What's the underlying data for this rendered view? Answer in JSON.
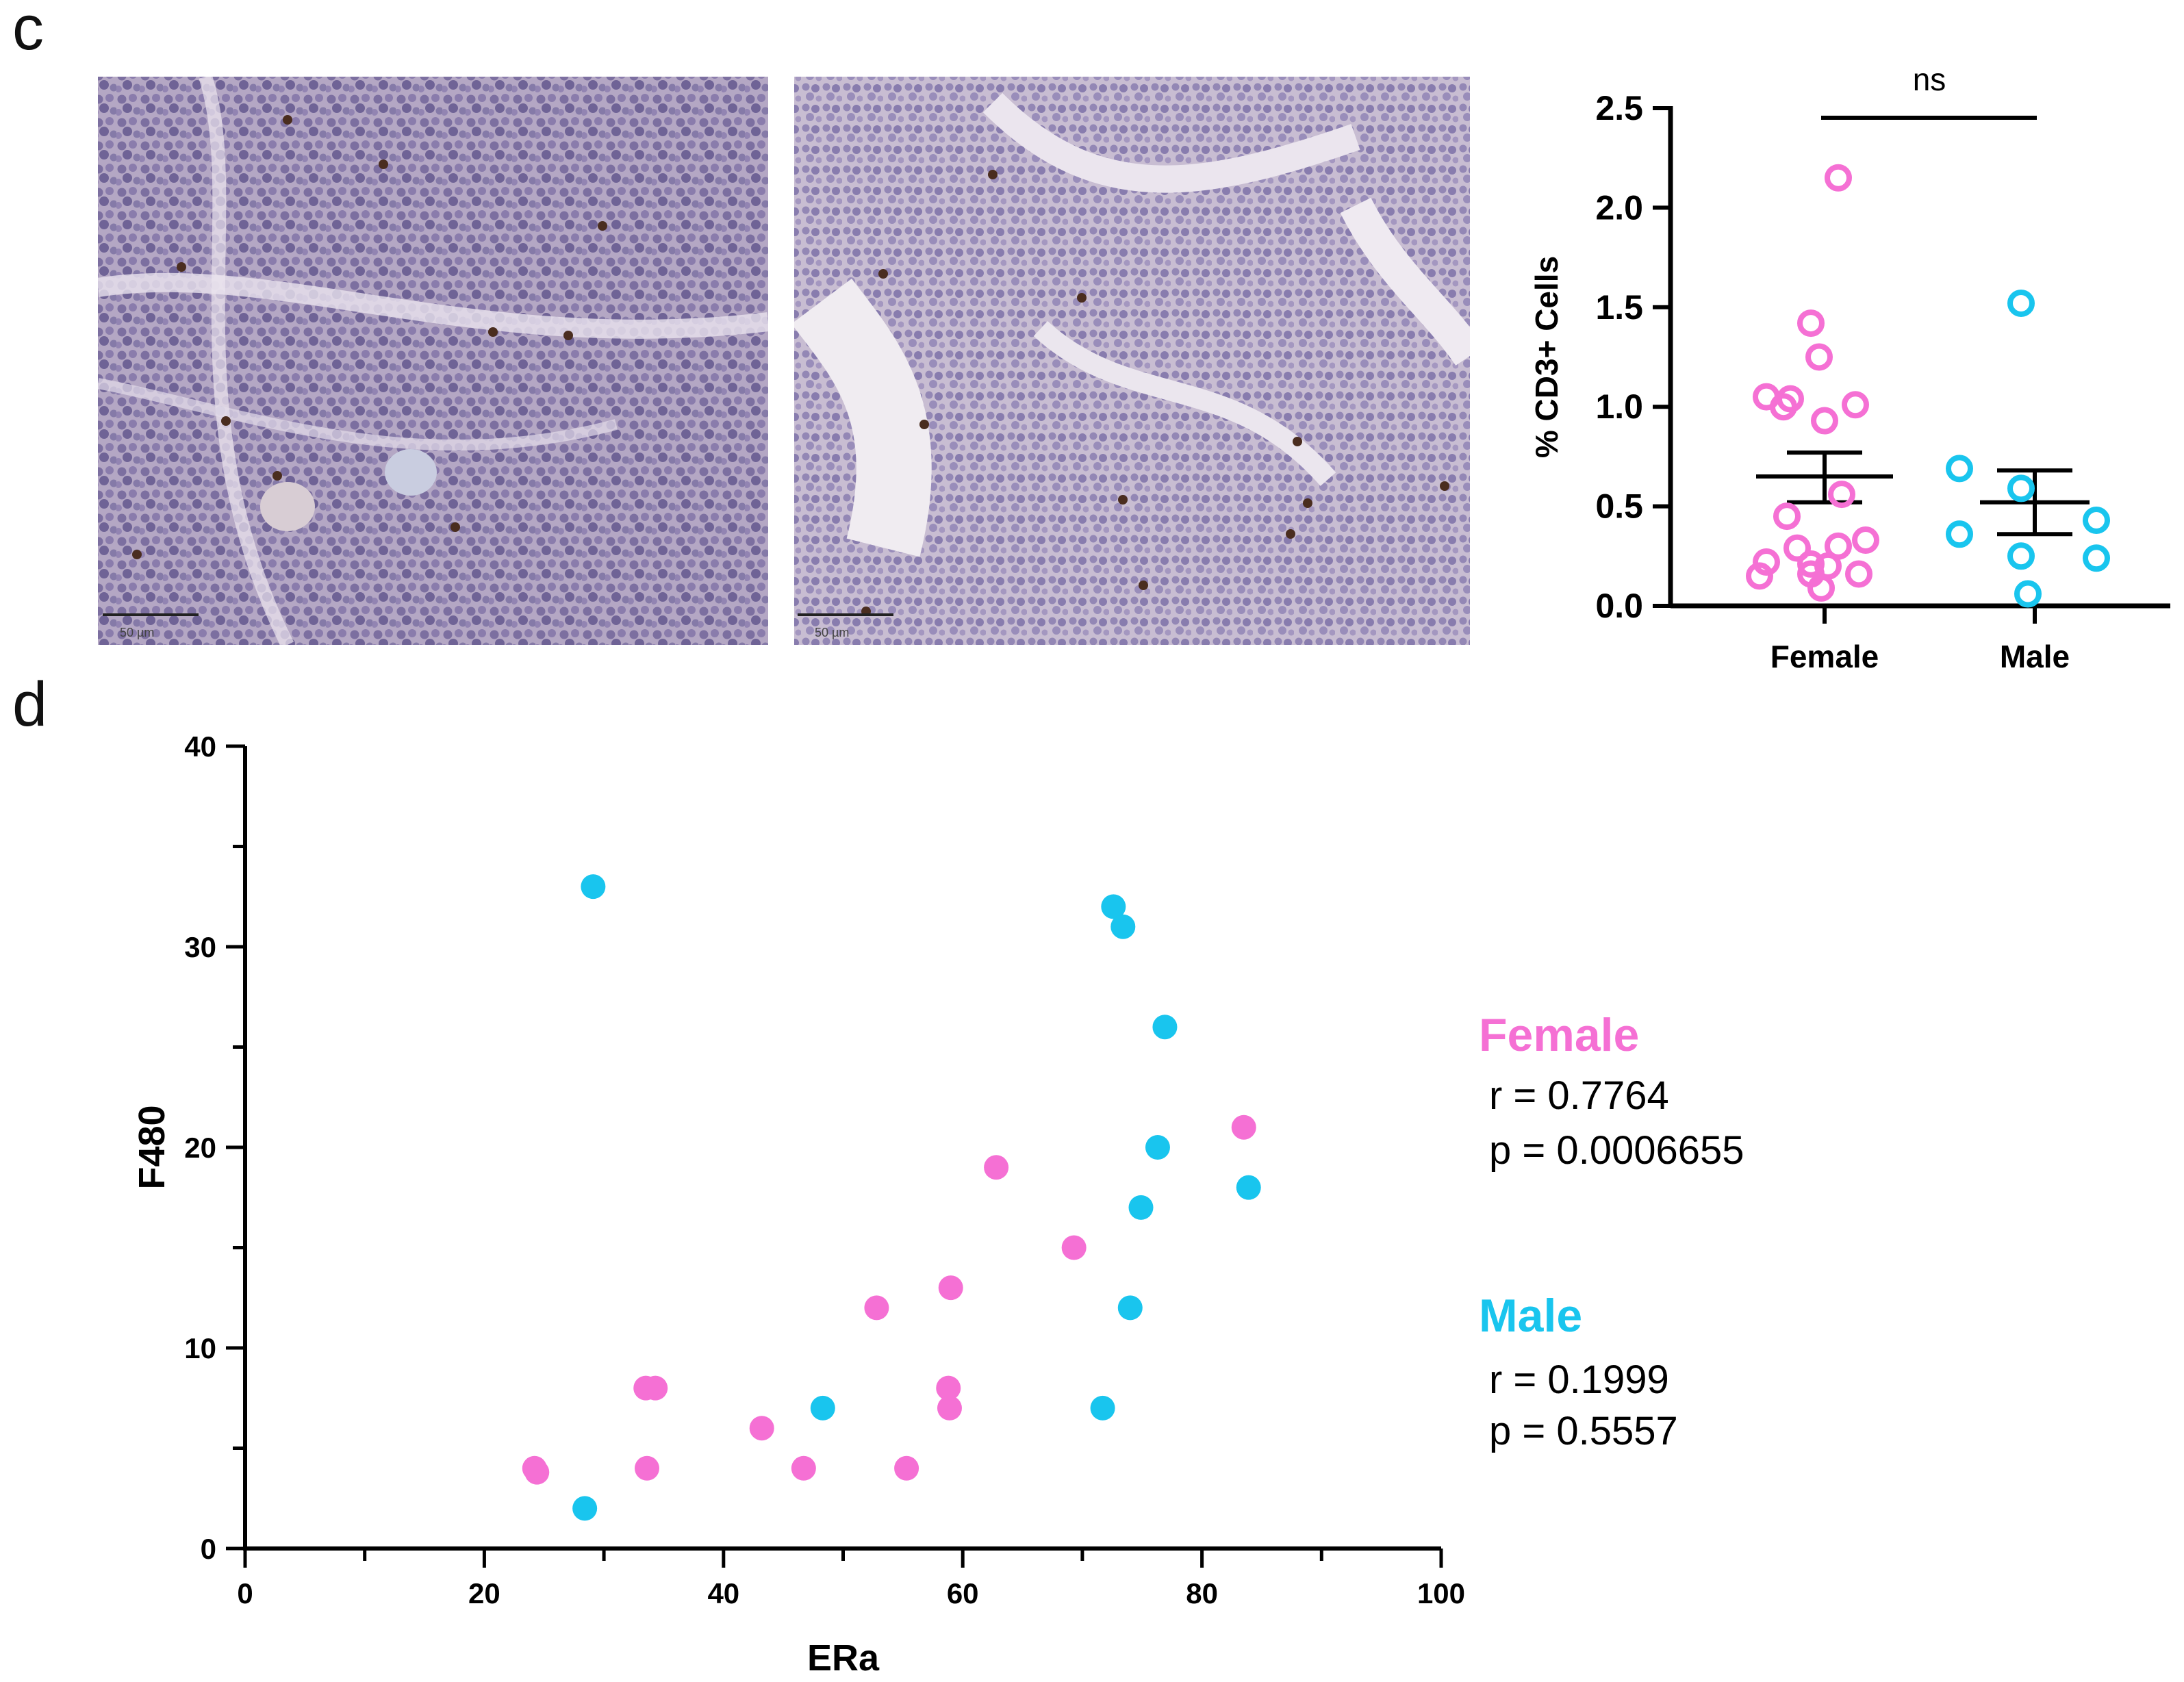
{
  "panels": {
    "c": "c",
    "d": "d"
  },
  "colors": {
    "female": "#f570d4",
    "male": "#19c5ee",
    "axis": "#000000"
  },
  "micrographs": [
    {
      "name": "female-tumor-ihc",
      "scale_label": "50 µm"
    },
    {
      "name": "male-tumor-ihc",
      "scale_label": "50 µm"
    }
  ],
  "chart_data": [
    {
      "type": "scatter",
      "subtype": "dot-plot with mean ± SEM",
      "title": "",
      "ylabel": "% CD3+ Cells",
      "categories": [
        "Female",
        "Male"
      ],
      "ylim": [
        0,
        2.5
      ],
      "yticks": [
        "0.0",
        "0.5",
        "1.0",
        "1.5",
        "2.0",
        "2.5"
      ],
      "significance": "ns",
      "series": [
        {
          "name": "Female",
          "values": [
            2.15,
            1.42,
            1.25,
            1.05,
            1.04,
            1.0,
            1.01,
            0.93,
            0.56,
            0.45,
            0.33,
            0.29,
            0.3,
            0.21,
            0.2,
            0.22,
            0.16,
            0.15,
            0.16,
            0.09
          ],
          "mean": 0.65,
          "sem_low": 0.52,
          "sem_high": 0.77
        },
        {
          "name": "Male",
          "values": [
            1.52,
            0.69,
            0.59,
            0.43,
            0.36,
            0.25,
            0.24,
            0.06
          ],
          "mean": 0.52,
          "sem_low": 0.36,
          "sem_high": 0.68
        }
      ]
    },
    {
      "type": "scatter",
      "title": "",
      "xlabel": "ERa",
      "ylabel": "F480",
      "xlim": [
        0,
        100
      ],
      "ylim": [
        0,
        40
      ],
      "xticks": [
        0,
        20,
        40,
        60,
        80,
        100
      ],
      "yticks": [
        0,
        10,
        20,
        30,
        40
      ],
      "series": [
        {
          "name": "Female",
          "x": [
            24.2,
            24.4,
            33.5,
            33.6,
            34.3,
            43.2,
            46.7,
            52.8,
            55.3,
            58.8,
            58.9,
            59.0,
            62.8,
            69.3,
            83.5
          ],
          "y": [
            4,
            3.8,
            8,
            4,
            8,
            6,
            4,
            12,
            4,
            8,
            7,
            13,
            19,
            15,
            21
          ]
        },
        {
          "name": "Male",
          "x": [
            28.4,
            29.1,
            48.3,
            71.7,
            72.6,
            73.4,
            74.0,
            74.9,
            76.3,
            76.9,
            83.9
          ],
          "y": [
            2,
            33,
            7,
            7,
            32,
            31,
            12,
            17,
            20,
            26,
            18
          ]
        }
      ],
      "stats": [
        {
          "group": "Female",
          "r": "r = 0.7764",
          "p": "p = 0.0006655"
        },
        {
          "group": "Male",
          "r": "r = 0.1999",
          "p": "p = 0.5557"
        }
      ]
    }
  ]
}
